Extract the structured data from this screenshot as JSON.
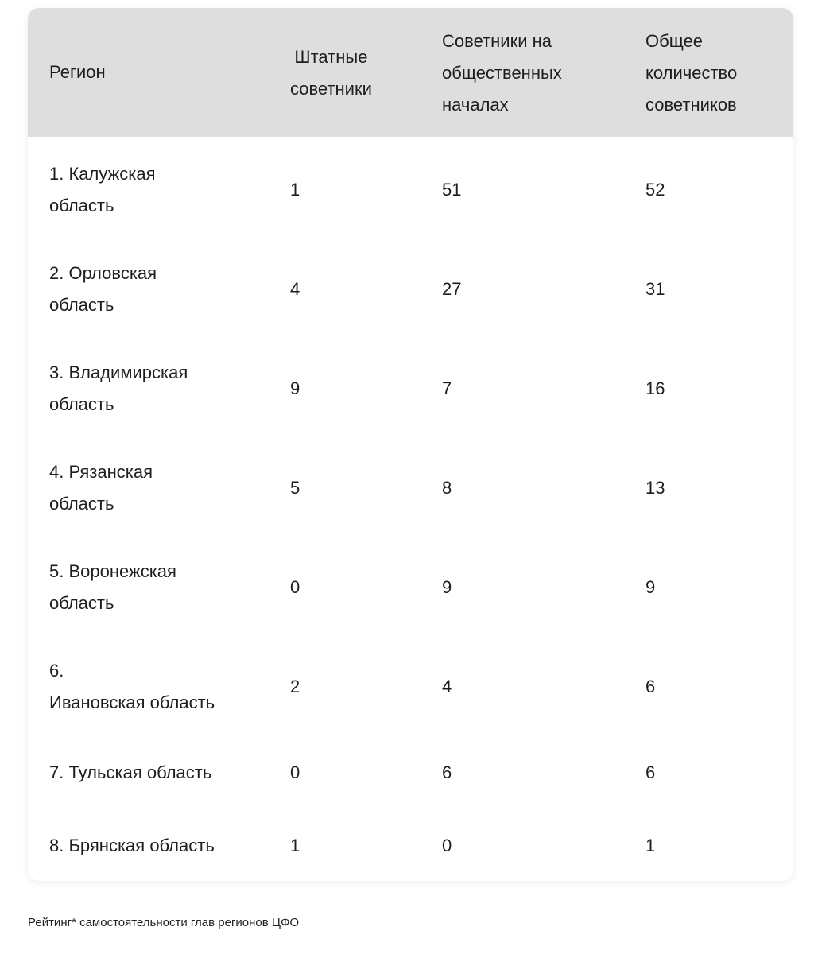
{
  "table": {
    "headers": [
      "Регион",
      "Штатные советники",
      "Советники на общественных началах",
      "Общее количество советников"
    ],
    "header_lines": [
      [
        "Регион"
      ],
      [
        "Штатные",
        "советники"
      ],
      [
        "Советники на",
        "общественных",
        "началах"
      ],
      [
        "Общее",
        "количество",
        "советников"
      ]
    ],
    "rows": [
      {
        "region_lines": [
          "1. Калужская",
          "область"
        ],
        "staff": "1",
        "volunteer": "51",
        "total": "52"
      },
      {
        "region_lines": [
          "2. Орловская",
          "область"
        ],
        "staff": "4",
        "volunteer": "27",
        "total": "31"
      },
      {
        "region_lines": [
          "3. Владимирская",
          "область"
        ],
        "staff": "9",
        "volunteer": "7",
        "total": "16"
      },
      {
        "region_lines": [
          "4. Рязанская",
          "область"
        ],
        "staff": "5",
        "volunteer": "8",
        "total": "13"
      },
      {
        "region_lines": [
          "5. Воронежская",
          "область"
        ],
        "staff": "0",
        "volunteer": "9",
        "total": "9"
      },
      {
        "region_lines": [
          "6.",
          "Ивановская область"
        ],
        "staff": "2",
        "volunteer": "4",
        "total": "6"
      },
      {
        "region_lines": [
          "7. Тульская область"
        ],
        "staff": "0",
        "volunteer": "6",
        "total": "6"
      },
      {
        "region_lines": [
          "8. Брянская область"
        ],
        "staff": "1",
        "volunteer": "0",
        "total": "1"
      }
    ]
  },
  "footer": {
    "caption": "Рейтинг* самостоятельности глав регионов ЦФО"
  }
}
